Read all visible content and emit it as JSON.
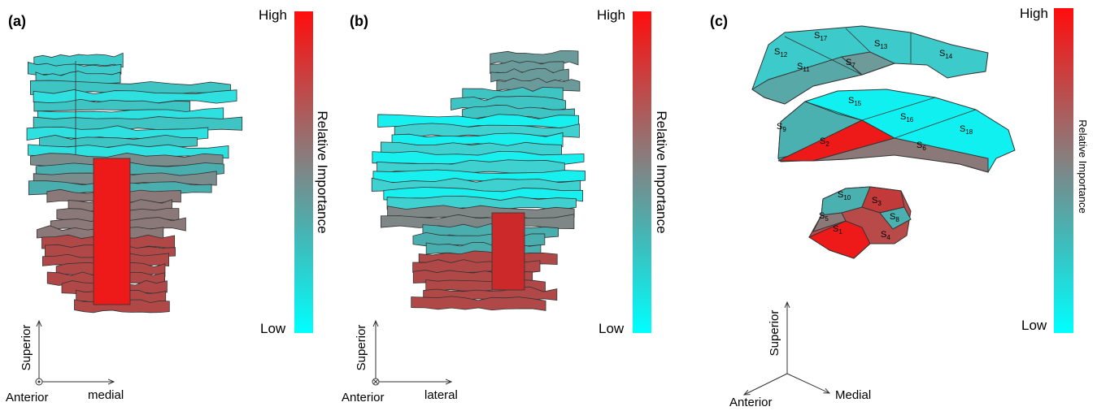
{
  "panels": [
    {
      "label": "(a)",
      "colorbar": {
        "high": "High",
        "low": "Low",
        "title": "Relative Importance"
      },
      "axes": {
        "up": "Superior",
        "origin": "Anterior",
        "right": "medial"
      }
    },
    {
      "label": "(b)",
      "colorbar": {
        "high": "High",
        "low": "Low",
        "title": "Relative Importance"
      },
      "axes": {
        "up": "Superior",
        "origin": "Anterior",
        "right": "lateral"
      }
    },
    {
      "label": "(c)",
      "colorbar": {
        "high": "High",
        "low": "Low",
        "title": "Relative Importance"
      },
      "axes": {
        "up": "Superior",
        "left": "Anterior",
        "right": "Medial"
      },
      "segments": [
        {
          "name": "S",
          "sub": "17"
        },
        {
          "name": "S",
          "sub": "13"
        },
        {
          "name": "S",
          "sub": "14"
        },
        {
          "name": "S",
          "sub": "12"
        },
        {
          "name": "S",
          "sub": "11"
        },
        {
          "name": "S",
          "sub": "7"
        },
        {
          "name": "S",
          "sub": "15"
        },
        {
          "name": "S",
          "sub": "16"
        },
        {
          "name": "S",
          "sub": "18"
        },
        {
          "name": "S",
          "sub": "9"
        },
        {
          "name": "S",
          "sub": "2"
        },
        {
          "name": "S",
          "sub": "6"
        },
        {
          "name": "S",
          "sub": "10"
        },
        {
          "name": "S",
          "sub": "3"
        },
        {
          "name": "S",
          "sub": "5"
        },
        {
          "name": "S",
          "sub": "8"
        },
        {
          "name": "S",
          "sub": "1"
        },
        {
          "name": "S",
          "sub": "4"
        }
      ]
    }
  ]
}
